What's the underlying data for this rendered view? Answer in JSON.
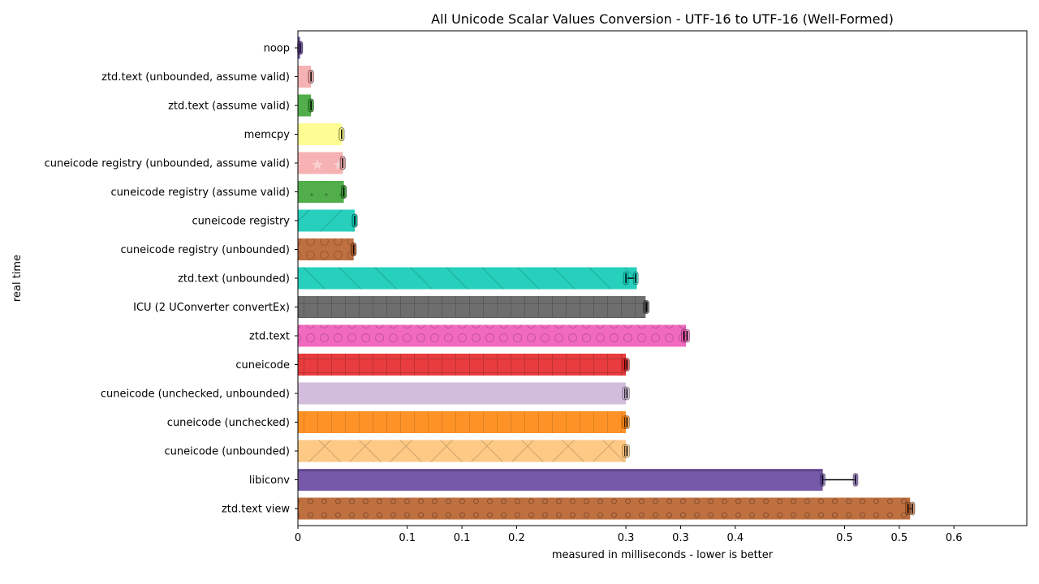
{
  "chart_data": {
    "type": "bar",
    "orientation": "horizontal",
    "title": "All Unicode Scalar Values Conversion - UTF-16 to UTF-16 (Well-Formed)",
    "xlabel": "measured in milliseconds - lower is better",
    "ylabel": "real time",
    "xlim": [
      0,
      0.7
    ],
    "xticks": [
      "0",
      "0.1",
      "0.1",
      "0.2",
      "0.3",
      "0.3",
      "0.4",
      "0.5",
      "0.5",
      "0.6"
    ],
    "xtick_values": [
      0,
      0.1,
      0.15,
      0.2,
      0.3,
      0.35,
      0.4,
      0.5,
      0.55,
      0.6
    ],
    "grid": false,
    "categories": [
      "noop",
      "ztd.text (unbounded, assume valid)",
      "ztd.text (assume valid)",
      "memcpy",
      "cuneicode registry (unbounded, assume valid)",
      "cuneicode registry (assume valid)",
      "cuneicode registry",
      "cuneicode registry (unbounded)",
      "ztd.text (unbounded)",
      "ICU (2 UConverter convertEx)",
      "ztd.text",
      "cuneicode",
      "cuneicode (unchecked, unbounded)",
      "cuneicode (unchecked)",
      "cuneicode (unbounded)",
      "libiconv",
      "ztd.text view"
    ],
    "values": [
      0.002,
      0.012,
      0.012,
      0.04,
      0.041,
      0.042,
      0.052,
      0.051,
      0.31,
      0.318,
      0.355,
      0.3,
      0.3,
      0.3,
      0.3,
      0.48,
      0.56
    ],
    "error_low": [
      0.002,
      0.012,
      0.012,
      0.04,
      0.041,
      0.042,
      0.052,
      0.051,
      0.3,
      0.318,
      0.353,
      0.299,
      0.299,
      0.299,
      0.299,
      0.48,
      0.558
    ],
    "error_high": [
      0.002,
      0.012,
      0.012,
      0.04,
      0.041,
      0.042,
      0.052,
      0.051,
      0.309,
      0.319,
      0.356,
      0.301,
      0.301,
      0.301,
      0.301,
      0.51,
      0.562
    ],
    "colors": [
      "#5e3c99",
      "#f4a4a4",
      "#33a02c",
      "#fdfd80",
      "#f4a4a4",
      "#33a02c",
      "#00c8b0",
      "#b4571f",
      "#00c8b0",
      "#555555",
      "#f050b4",
      "#e41a1c",
      "#cab2d6",
      "#ff7f00",
      "#fdbf6f",
      "#5e3c99",
      "#b4571f"
    ],
    "patterns": [
      "none",
      "none",
      "none",
      "none",
      "star",
      "dot",
      "slash",
      "circle",
      "backslash",
      "grid",
      "circle",
      "grid",
      "none",
      "vline",
      "cross",
      "hline",
      "smallcircle"
    ]
  }
}
